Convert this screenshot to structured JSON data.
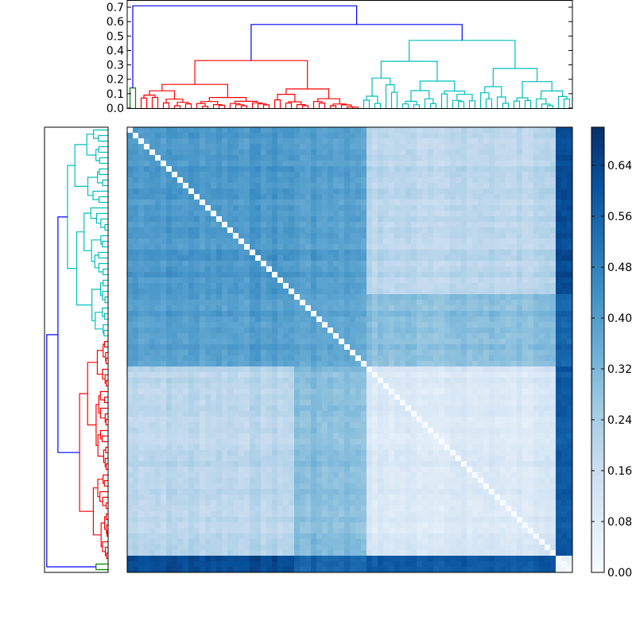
{
  "chart_data": [
    {
      "type": "dendrogram",
      "panel": "top",
      "ylim": [
        0,
        0.75
      ],
      "yticks": [
        "0.0",
        "0.1",
        "0.2",
        "0.3",
        "0.4",
        "0.5",
        "0.6",
        "0.7"
      ],
      "n_leaves": 80,
      "link_colors": [
        "#008000",
        "#ff0000",
        "#00bfbf",
        "#0000ff"
      ],
      "clusters": [
        {
          "color": "#008000",
          "leaves": 2,
          "height": 0.14
        },
        {
          "color": "#ff0000",
          "leaves": 40,
          "height": 0.33
        },
        {
          "color": "#00bfbf",
          "leaves": 38,
          "height": 0.47
        }
      ],
      "root_links": [
        {
          "color": "#0000ff",
          "height": 0.58
        },
        {
          "color": "#0000ff",
          "height": 0.71
        }
      ]
    },
    {
      "type": "dendrogram",
      "panel": "left",
      "n_leaves": 80,
      "link_colors": [
        "#008000",
        "#ff0000",
        "#00bfbf",
        "#0000ff"
      ],
      "clusters": [
        {
          "color": "#00bfbf",
          "leaves": 38
        },
        {
          "color": "#ff0000",
          "leaves": 40
        },
        {
          "color": "#008000",
          "leaves": 2
        }
      ]
    },
    {
      "type": "heatmap",
      "panel": "main",
      "size": 80,
      "colormap": "Blues",
      "vmin": 0.0,
      "vmax": 0.7,
      "colorbar_ticks": [
        "0.00",
        "0.08",
        "0.16",
        "0.24",
        "0.32",
        "0.40",
        "0.48",
        "0.56",
        "0.64"
      ],
      "block_means": [
        [
          0.42,
          0.4,
          0.2,
          0.62
        ],
        [
          0.4,
          0.38,
          0.3,
          0.55
        ],
        [
          0.2,
          0.3,
          0.1,
          0.58
        ],
        [
          0.62,
          0.55,
          0.58,
          0.02
        ]
      ],
      "block_bounds": [
        0,
        30,
        43,
        77,
        80
      ]
    }
  ]
}
